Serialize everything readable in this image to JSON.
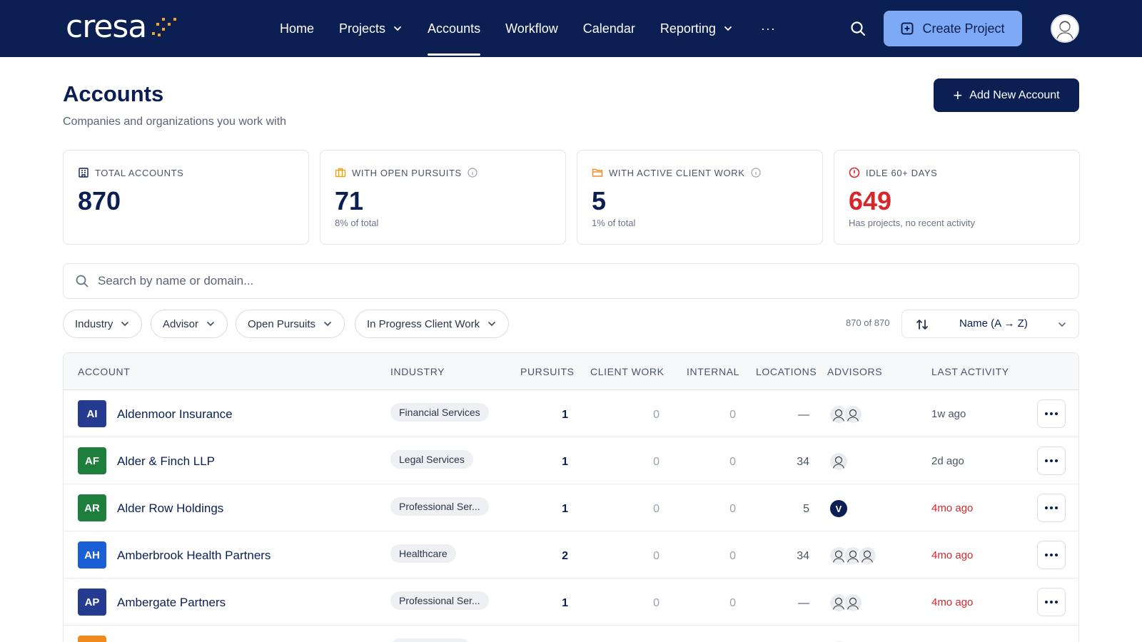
{
  "brand": {
    "logo_text": "cresa",
    "accent": "#f5a524"
  },
  "nav": {
    "items": [
      {
        "label": "Home",
        "has_menu": false,
        "active": false
      },
      {
        "label": "Projects",
        "has_menu": true,
        "active": false
      },
      {
        "label": "Accounts",
        "has_menu": false,
        "active": true
      },
      {
        "label": "Workflow",
        "has_menu": false,
        "active": false
      },
      {
        "label": "Calendar",
        "has_menu": false,
        "active": false
      },
      {
        "label": "Reporting",
        "has_menu": true,
        "active": false
      }
    ],
    "more_label": "···",
    "create_label": "Create Project"
  },
  "page": {
    "title": "Accounts",
    "subtitle": "Companies and organizations you work with",
    "add_label": "Add New Account"
  },
  "stats": [
    {
      "label": "TOTAL ACCOUNTS",
      "value": "870",
      "note": "",
      "icon": "building-icon",
      "info": false,
      "color": "#0b1f52"
    },
    {
      "label": "WITH OPEN PURSUITS",
      "value": "71",
      "note": "8% of total",
      "icon": "briefcase-icon",
      "info": true,
      "color": "#0b1f52"
    },
    {
      "label": "WITH ACTIVE CLIENT WORK",
      "value": "5",
      "note": "1% of total",
      "icon": "folder-icon",
      "info": true,
      "color": "#0b1f52"
    },
    {
      "label": "IDLE 60+ DAYS",
      "value": "649",
      "note": "Has projects, no recent activity",
      "icon": "alert-circle-icon",
      "info": false,
      "color": "#d6272b"
    }
  ],
  "search": {
    "placeholder": "Search by name or domain...",
    "value": ""
  },
  "filters": {
    "chips": [
      "Industry",
      "Advisor",
      "Open Pursuits",
      "In Progress Client Work"
    ],
    "count": "870 of 870",
    "sort_label": "Name (A → Z)"
  },
  "table": {
    "headers": {
      "account": "ACCOUNT",
      "industry": "INDUSTRY",
      "pursuits": "PURSUITS",
      "client_work": "CLIENT WORK",
      "internal": "INTERNAL",
      "locations": "LOCATIONS",
      "advisors": "ADVISORS",
      "last_activity": "LAST ACTIVITY"
    },
    "rows": [
      {
        "initials": "AI",
        "name": "Aldenmoor Insurance",
        "color": "#243b8f",
        "industry": "Financial Services",
        "pursuits": "1",
        "client_work": "0",
        "internal": "0",
        "locations": "—",
        "advisors": [
          "sketch",
          "sketch"
        ],
        "last_activity": "1w ago",
        "stale": false
      },
      {
        "initials": "AF",
        "name": "Alder & Finch LLP",
        "color": "#1e7f3d",
        "industry": "Legal Services",
        "pursuits": "1",
        "client_work": "0",
        "internal": "0",
        "locations": "34",
        "advisors": [
          "sketch"
        ],
        "last_activity": "2d ago",
        "stale": false
      },
      {
        "initials": "AR",
        "name": "Alder Row Holdings",
        "color": "#1e7f3d",
        "industry": "Professional Ser...",
        "pursuits": "1",
        "client_work": "0",
        "internal": "0",
        "locations": "5",
        "advisors": [
          "V"
        ],
        "last_activity": "4mo ago",
        "stale": true
      },
      {
        "initials": "AH",
        "name": "Amberbrook Health Partners",
        "color": "#1a5fd6",
        "industry": "Healthcare",
        "pursuits": "2",
        "client_work": "0",
        "internal": "0",
        "locations": "34",
        "advisors": [
          "sketch",
          "sketch",
          "sketch"
        ],
        "last_activity": "4mo ago",
        "stale": true
      },
      {
        "initials": "AP",
        "name": "Ambergate Partners",
        "color": "#243b8f",
        "industry": "Professional Ser...",
        "pursuits": "1",
        "client_work": "0",
        "internal": "0",
        "locations": "—",
        "advisors": [
          "sketch",
          "sketch"
        ],
        "last_activity": "4mo ago",
        "stale": true
      },
      {
        "initials": "",
        "name": "",
        "color": "#f08a1c",
        "industry": "",
        "pursuits": "",
        "client_work": "",
        "internal": "",
        "locations": "",
        "advisors": [
          "sketch"
        ],
        "last_activity": "",
        "stale": false
      }
    ]
  }
}
